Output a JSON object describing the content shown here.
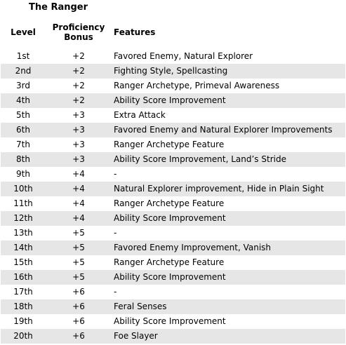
{
  "caption": "The Ranger",
  "headers": {
    "level": "Level",
    "proficiency_line1": "Proficiency",
    "proficiency_line2": "Bonus",
    "features": "Features"
  },
  "rows": [
    {
      "level": "1st",
      "bonus": "+2",
      "features": "Favored Enemy, Natural Explorer"
    },
    {
      "level": "2nd",
      "bonus": "+2",
      "features": "Fighting Style, Spellcasting"
    },
    {
      "level": "3rd",
      "bonus": "+2",
      "features": "Ranger Archetype, Primeval Awareness"
    },
    {
      "level": "4th",
      "bonus": "+2",
      "features": "Ability Score Improvement"
    },
    {
      "level": "5th",
      "bonus": "+3",
      "features": "Extra Attack"
    },
    {
      "level": "6th",
      "bonus": "+3",
      "features": "Favored Enemy and Natural Explorer Improvements"
    },
    {
      "level": "7th",
      "bonus": "+3",
      "features": "Ranger Archetype Feature"
    },
    {
      "level": "8th",
      "bonus": "+3",
      "features": "Ability Score Improvement, Land’s Stride"
    },
    {
      "level": "9th",
      "bonus": "+4",
      "features": "-"
    },
    {
      "level": "10th",
      "bonus": "+4",
      "features": "Natural Explorer improvement, Hide in Plain Sight"
    },
    {
      "level": "11th",
      "bonus": "+4",
      "features": "Ranger Archetype Feature"
    },
    {
      "level": "12th",
      "bonus": "+4",
      "features": "Ability Score Improvement"
    },
    {
      "level": "13th",
      "bonus": "+5",
      "features": "-"
    },
    {
      "level": "14th",
      "bonus": "+5",
      "features": "Favored Enemy Improvement, Vanish"
    },
    {
      "level": "15th",
      "bonus": "+5",
      "features": "Ranger Archetype Feature"
    },
    {
      "level": "16th",
      "bonus": "+5",
      "features": "Ability Score Improvement"
    },
    {
      "level": "17th",
      "bonus": "+6",
      "features": "-"
    },
    {
      "level": "18th",
      "bonus": "+6",
      "features": "Feral Senses"
    },
    {
      "level": "19th",
      "bonus": "+6",
      "features": "Ability Score Improvement"
    },
    {
      "level": "20th",
      "bonus": "+6",
      "features": "Foe Slayer"
    }
  ]
}
